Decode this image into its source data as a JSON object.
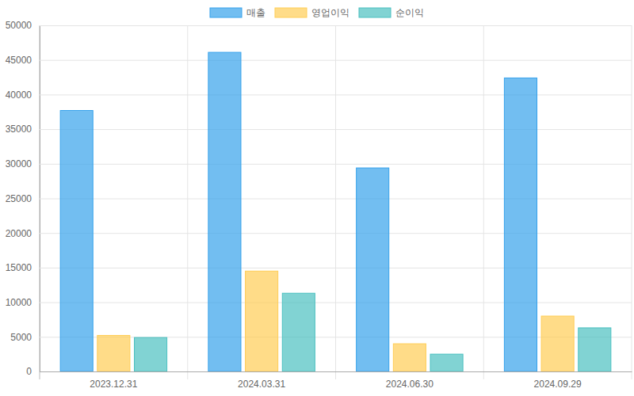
{
  "chart_data": {
    "type": "bar",
    "categories": [
      "2023.12.31",
      "2024.03.31",
      "2024.06.30",
      "2024.09.29"
    ],
    "series": [
      {
        "name": "매출",
        "color": "#36a2eb",
        "values": [
          37700,
          46100,
          29400,
          42400
        ]
      },
      {
        "name": "영업이익",
        "color": "#ffcd56",
        "values": [
          5200,
          14500,
          4000,
          8000
        ]
      },
      {
        "name": "순이익",
        "color": "#4bc0c0",
        "values": [
          4900,
          11300,
          2500,
          6300
        ]
      }
    ],
    "ylim": [
      0,
      50000
    ],
    "yticks": [
      0,
      5000,
      10000,
      15000,
      20000,
      25000,
      30000,
      35000,
      40000,
      45000,
      50000
    ],
    "grid": true,
    "legend": "top"
  }
}
